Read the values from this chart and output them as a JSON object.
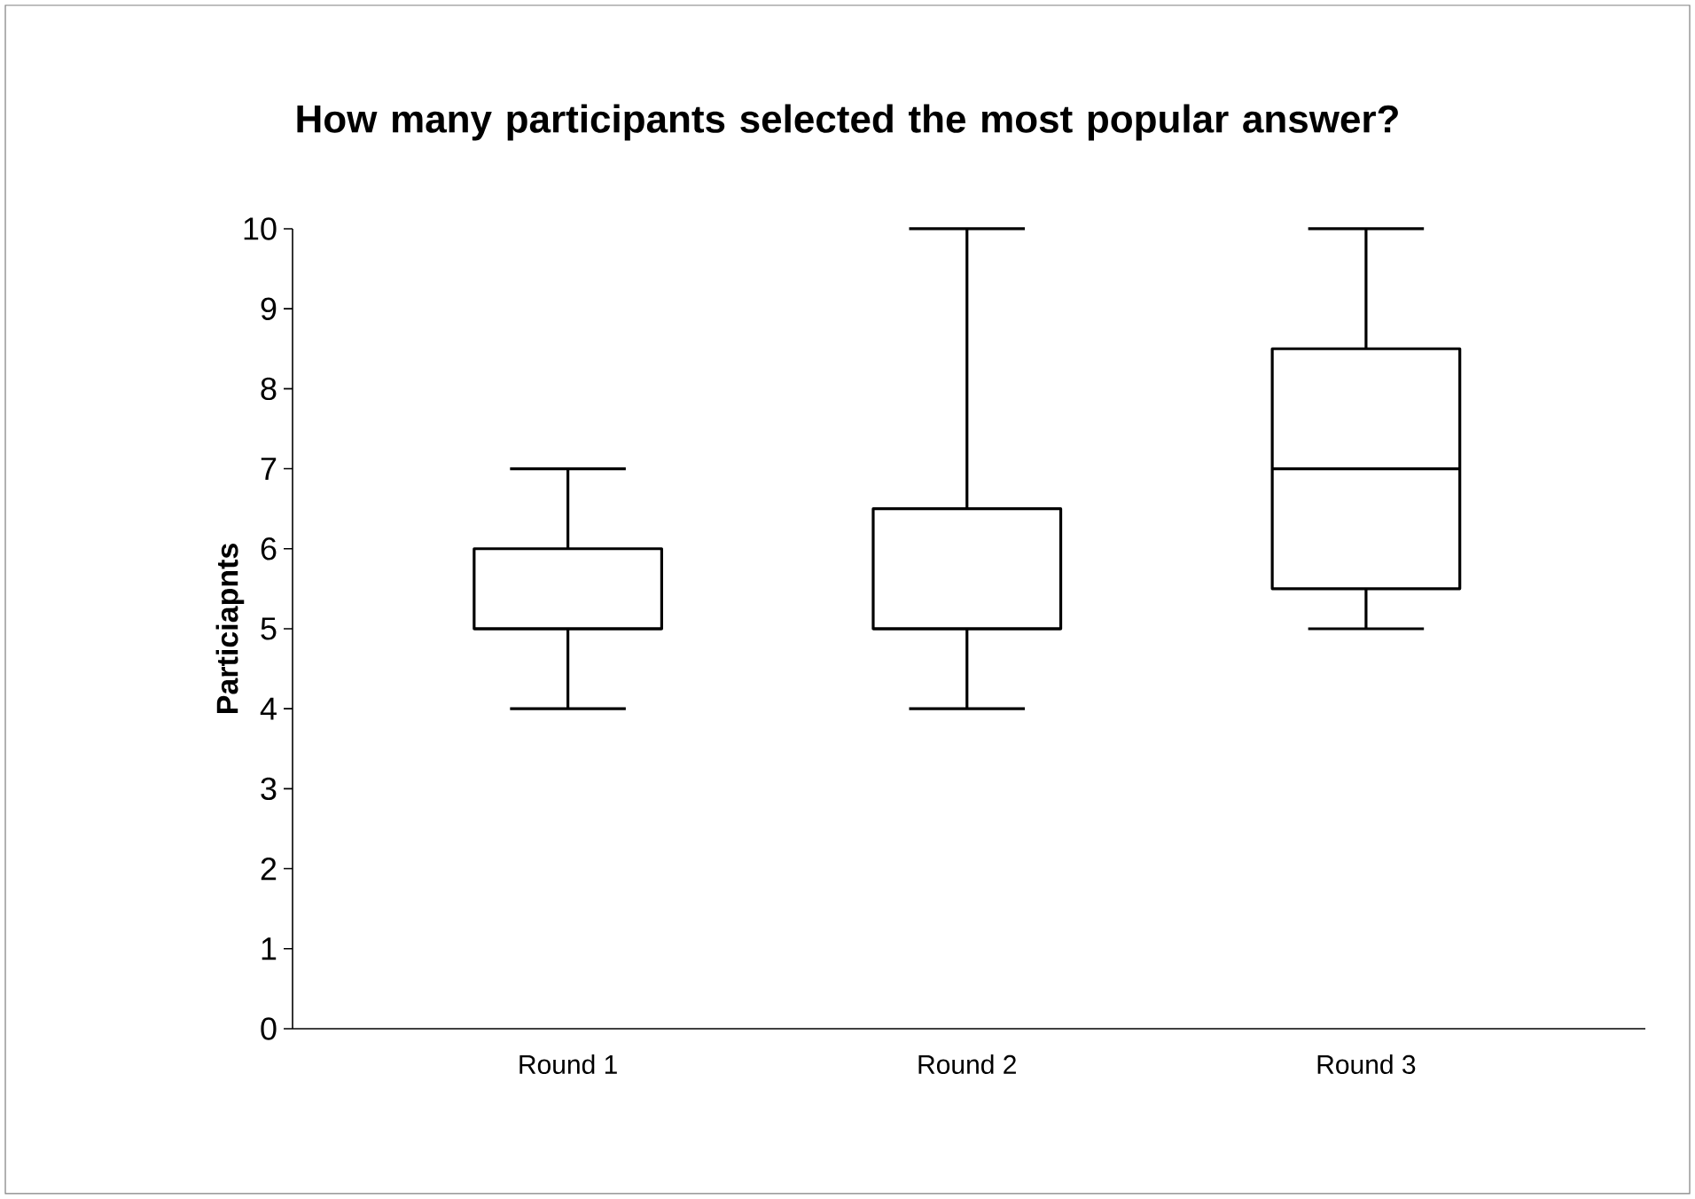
{
  "chart_data": {
    "type": "box",
    "title": "How many participants selected the most popular answer?",
    "ylabel": "Particiapnts",
    "categories": [
      "Round 1",
      "Round 2",
      "Round 3"
    ],
    "boxes": [
      {
        "low": 4,
        "q1": 5,
        "median": 5,
        "q3": 6,
        "high": 7
      },
      {
        "low": 4,
        "q1": 5,
        "median": 5,
        "q3": 6.5,
        "high": 10
      },
      {
        "low": 5,
        "q1": 5.5,
        "median": 7,
        "q3": 8.5,
        "high": 10
      }
    ],
    "ylim": [
      0,
      10
    ],
    "yticks": [
      0,
      1,
      2,
      3,
      4,
      5,
      6,
      7,
      8,
      9,
      10
    ]
  }
}
